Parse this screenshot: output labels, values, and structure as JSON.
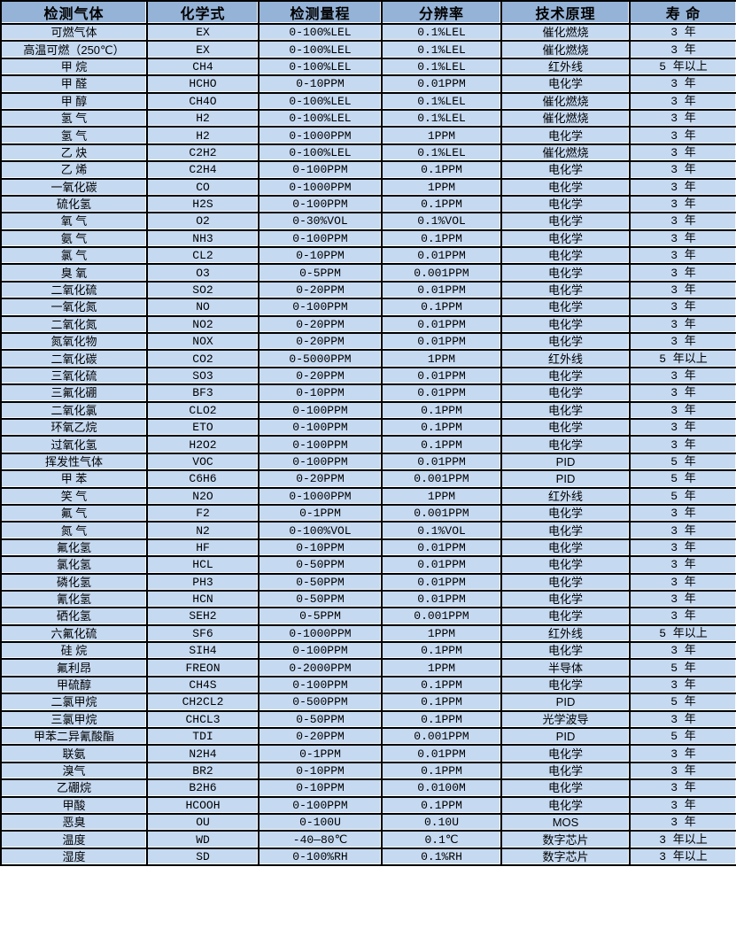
{
  "table": {
    "colors": {
      "header_bg": "#95b3d7",
      "row_bg": "#c5d9f1",
      "border": "#000000"
    },
    "headers": [
      "检测气体",
      "化学式",
      "检测量程",
      "分辨率",
      "技术原理",
      "寿 命"
    ],
    "rows": [
      [
        "可燃气体",
        "EX",
        "0-100%LEL",
        "0.1%LEL",
        "催化燃烧",
        "3 年"
      ],
      [
        "高温可燃（250℃）",
        "EX",
        "0-100%LEL",
        "0.1%LEL",
        "催化燃烧",
        "3 年"
      ],
      [
        "甲 烷",
        "CH4",
        "0-100%LEL",
        "0.1%LEL",
        "红外线",
        "5 年以上"
      ],
      [
        "甲 醛",
        "HCHO",
        "0-10PPM",
        "0.01PPM",
        "电化学",
        "3 年"
      ],
      [
        "甲 醇",
        "CH4O",
        "0-100%LEL",
        "0.1%LEL",
        "催化燃烧",
        "3 年"
      ],
      [
        "氢 气",
        "H2",
        "0-100%LEL",
        "0.1%LEL",
        "催化燃烧",
        "3 年"
      ],
      [
        "氢 气",
        "H2",
        "0-1000PPM",
        "1PPM",
        "电化学",
        "3 年"
      ],
      [
        "乙 炔",
        "C2H2",
        "0-100%LEL",
        "0.1%LEL",
        "催化燃烧",
        "3 年"
      ],
      [
        "乙 烯",
        "C2H4",
        "0-100PPM",
        "0.1PPM",
        "电化学",
        "3 年"
      ],
      [
        "一氧化碳",
        "CO",
        "0-1000PPM",
        "1PPM",
        "电化学",
        "3 年"
      ],
      [
        "硫化氢",
        "H2S",
        "0-100PPM",
        "0.1PPM",
        "电化学",
        "3 年"
      ],
      [
        "氧 气",
        "O2",
        "0-30%VOL",
        "0.1%VOL",
        "电化学",
        "3 年"
      ],
      [
        "氨 气",
        "NH3",
        "0-100PPM",
        "0.1PPM",
        "电化学",
        "3 年"
      ],
      [
        "氯 气",
        "CL2",
        "0-10PPM",
        "0.01PPM",
        "电化学",
        "3 年"
      ],
      [
        "臭 氧",
        "O3",
        "0-5PPM",
        "0.001PPM",
        "电化学",
        "3 年"
      ],
      [
        "二氧化硫",
        "SO2",
        "0-20PPM",
        "0.01PPM",
        "电化学",
        "3 年"
      ],
      [
        "一氧化氮",
        "NO",
        "0-100PPM",
        "0.1PPM",
        "电化学",
        "3 年"
      ],
      [
        "二氧化氮",
        "NO2",
        "0-20PPM",
        "0.01PPM",
        "电化学",
        "3 年"
      ],
      [
        "氮氧化物",
        "NOX",
        "0-20PPM",
        "0.01PPM",
        "电化学",
        "3 年"
      ],
      [
        "二氧化碳",
        "CO2",
        "0-5000PPM",
        "1PPM",
        "红外线",
        "5 年以上"
      ],
      [
        "三氧化硫",
        "SO3",
        "0-20PPM",
        "0.01PPM",
        "电化学",
        "3 年"
      ],
      [
        "三氟化硼",
        "BF3",
        "0-10PPM",
        "0.01PPM",
        "电化学",
        "3 年"
      ],
      [
        "二氧化氯",
        "CLO2",
        "0-100PPM",
        "0.1PPM",
        "电化学",
        "3 年"
      ],
      [
        "环氧乙烷",
        "ETO",
        "0-100PPM",
        "0.1PPM",
        "电化学",
        "3 年"
      ],
      [
        "过氧化氢",
        "H2O2",
        "0-100PPM",
        "0.1PPM",
        "电化学",
        "3 年"
      ],
      [
        "挥发性气体",
        "VOC",
        "0-100PPM",
        "0.01PPM",
        "PID",
        "5 年"
      ],
      [
        "甲 苯",
        "C6H6",
        "0-20PPM",
        "0.001PPM",
        "PID",
        "5 年"
      ],
      [
        "笑 气",
        "N2O",
        "0-1000PPM",
        "1PPM",
        "红外线",
        "5 年"
      ],
      [
        "氟 气",
        "F2",
        "0-1PPM",
        "0.001PPM",
        "电化学",
        "3 年"
      ],
      [
        "氮 气",
        "N2",
        "0-100%VOL",
        "0.1%VOL",
        "电化学",
        "3 年"
      ],
      [
        "氟化氢",
        "HF",
        "0-10PPM",
        "0.01PPM",
        "电化学",
        "3 年"
      ],
      [
        "氯化氢",
        "HCL",
        "0-50PPM",
        "0.01PPM",
        "电化学",
        "3 年"
      ],
      [
        "磷化氢",
        "PH3",
        "0-50PPM",
        "0.01PPM",
        "电化学",
        "3 年"
      ],
      [
        "氰化氢",
        "HCN",
        "0-50PPM",
        "0.01PPM",
        "电化学",
        "3 年"
      ],
      [
        "硒化氢",
        "SEH2",
        "0-5PPM",
        "0.001PPM",
        "电化学",
        "3 年"
      ],
      [
        "六氟化硫",
        "SF6",
        "0-1000PPM",
        "1PPM",
        "红外线",
        "5 年以上"
      ],
      [
        "硅 烷",
        "SIH4",
        "0-100PPM",
        "0.1PPM",
        "电化学",
        "3 年"
      ],
      [
        "氟利昂",
        "FREON",
        "0-2000PPM",
        "1PPM",
        "半导体",
        "5 年"
      ],
      [
        "甲硫醇",
        "CH4S",
        "0-100PPM",
        "0.1PPM",
        "电化学",
        "3 年"
      ],
      [
        "二氯甲烷",
        "CH2CL2",
        "0-500PPM",
        "0.1PPM",
        "PID",
        "5 年"
      ],
      [
        "三氯甲烷",
        "CHCL3",
        "0-50PPM",
        "0.1PPM",
        "光学波导",
        "3 年"
      ],
      [
        "甲苯二异氰酸酯",
        "TDI",
        "0-20PPM",
        "0.001PPM",
        "PID",
        "5 年"
      ],
      [
        "联氨",
        "N2H4",
        "0-1PPM",
        "0.01PPM",
        "电化学",
        "3 年"
      ],
      [
        "溴气",
        "BR2",
        "0-10PPM",
        "0.1PPM",
        "电化学",
        "3 年"
      ],
      [
        "乙硼烷",
        "B2H6",
        "0-10PPM",
        "0.0100M",
        "电化学",
        "3 年"
      ],
      [
        "甲酸",
        "HCOOH",
        "0-100PPM",
        "0.1PPM",
        "电化学",
        "3 年"
      ],
      [
        "恶臭",
        "OU",
        "0-100U",
        "0.10U",
        "MOS",
        "3 年"
      ],
      [
        "温度",
        "WD",
        "-40—80℃",
        "0.1℃",
        "数字芯片",
        "3 年以上"
      ],
      [
        "湿度",
        "SD",
        "0-100%RH",
        "0.1%RH",
        "数字芯片",
        "3 年以上"
      ]
    ]
  }
}
